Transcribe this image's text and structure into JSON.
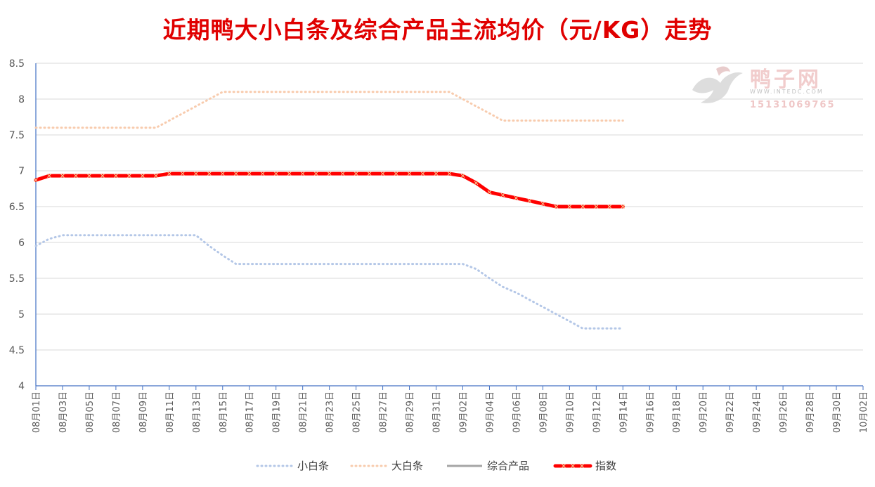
{
  "colors": {
    "title": "#E00000",
    "small": "#B4C7E7",
    "large": "#F8CBAD",
    "combined": "#A5A5A5",
    "index": "#FF0000",
    "index_marker": "#F4D29A",
    "grid": "#D9D9D9",
    "axis": "#4472C4"
  },
  "watermark": {
    "brand": "鸭子网",
    "url": "WWW.INTEDC.COM",
    "phone": "15131069765",
    "icon": "duck-logo-icon"
  },
  "chart_data": {
    "type": "line",
    "title": "近期鸭大小白条及综合产品主流均价（元/KG）走势",
    "xlabel": "",
    "ylabel": "",
    "ylim": [
      4,
      8.5
    ],
    "yticks": [
      "4",
      "4.5",
      "5",
      "5.5",
      "6",
      "6.5",
      "7",
      "7.5",
      "8",
      "8.5"
    ],
    "grid": true,
    "legend_position": "bottom",
    "x_tick_labels": [
      "08月01日",
      "08月03日",
      "08月05日",
      "08月07日",
      "08月09日",
      "08月11日",
      "08月13日",
      "08月15日",
      "08月17日",
      "08月19日",
      "08月21日",
      "08月23日",
      "08月25日",
      "08月27日",
      "08月29日",
      "08月31日",
      "09月02日",
      "09月04日",
      "09月06日",
      "09月08日",
      "09月10日",
      "09月12日",
      "09月14日",
      "09月16日",
      "09月18日",
      "09月20日",
      "09月22日",
      "09月24日",
      "09月26日",
      "09月28日",
      "09月30日",
      "10月02日"
    ],
    "x_span_days": 62,
    "series": [
      {
        "name": "小白条",
        "style": "dotted",
        "values": [
          5.95,
          6.05,
          6.1,
          6.1,
          6.1,
          6.1,
          6.1,
          6.1,
          6.1,
          6.1,
          6.1,
          6.1,
          6.1,
          5.95,
          5.82,
          5.7,
          5.7,
          5.7,
          5.7,
          5.7,
          5.7,
          5.7,
          5.7,
          5.7,
          5.7,
          5.7,
          5.7,
          5.7,
          5.7,
          5.7,
          5.7,
          5.7,
          5.7,
          5.63,
          5.5,
          5.38,
          5.3,
          5.2,
          5.1,
          5.0,
          4.9,
          4.8,
          4.8,
          4.8,
          4.8
        ]
      },
      {
        "name": "大白条",
        "style": "dotted",
        "values": [
          7.6,
          7.6,
          7.6,
          7.6,
          7.6,
          7.6,
          7.6,
          7.6,
          7.6,
          7.6,
          7.7,
          7.8,
          7.9,
          8.0,
          8.1,
          8.1,
          8.1,
          8.1,
          8.1,
          8.1,
          8.1,
          8.1,
          8.1,
          8.1,
          8.1,
          8.1,
          8.1,
          8.1,
          8.1,
          8.1,
          8.1,
          8.1,
          8.0,
          7.9,
          7.8,
          7.7,
          7.7,
          7.7,
          7.7,
          7.7,
          7.7,
          7.7,
          7.7,
          7.7,
          7.7
        ]
      },
      {
        "name": "综合产品",
        "style": "solid",
        "values": []
      },
      {
        "name": "指数",
        "style": "thick",
        "values": [
          6.87,
          6.93,
          6.93,
          6.93,
          6.93,
          6.93,
          6.93,
          6.93,
          6.93,
          6.93,
          6.96,
          6.96,
          6.96,
          6.96,
          6.96,
          6.96,
          6.96,
          6.96,
          6.96,
          6.96,
          6.96,
          6.96,
          6.96,
          6.96,
          6.96,
          6.96,
          6.96,
          6.96,
          6.96,
          6.96,
          6.96,
          6.96,
          6.93,
          6.83,
          6.7,
          6.66,
          6.62,
          6.58,
          6.54,
          6.5,
          6.5,
          6.5,
          6.5,
          6.5,
          6.5
        ]
      }
    ]
  }
}
